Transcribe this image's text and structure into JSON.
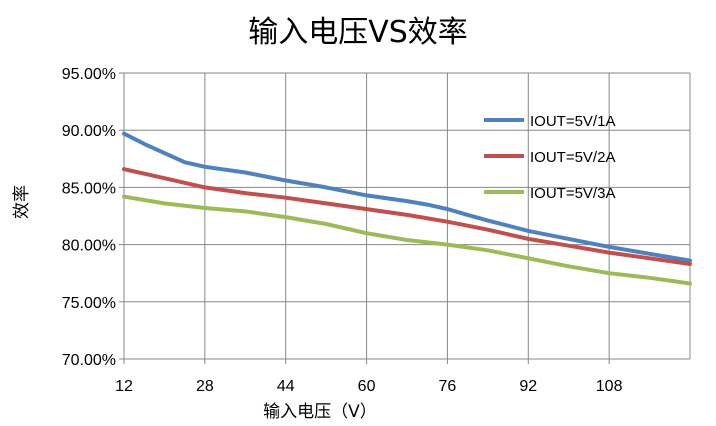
{
  "chart_data": {
    "type": "line",
    "title": "输入电压VS效率",
    "xlabel": "输入电压（V）",
    "ylabel": "效率",
    "xlim": [
      12,
      124
    ],
    "ylim": [
      70,
      95
    ],
    "x_ticks": [
      12,
      28,
      44,
      60,
      76,
      92,
      108
    ],
    "x_tick_labels": [
      "12",
      "28",
      "44",
      "60",
      "76",
      "92",
      "108"
    ],
    "y_ticks": [
      70,
      75,
      80,
      85,
      90,
      95
    ],
    "y_tick_labels": [
      "70.00%",
      "75.00%",
      "80.00%",
      "85.00%",
      "90.00%",
      "95.00%"
    ],
    "grid": true,
    "legend_position": "right",
    "series": [
      {
        "name": "IOUT=5V/1A",
        "color": "#4F81BD",
        "x": [
          12,
          16,
          20,
          24,
          28,
          36,
          44,
          52,
          60,
          68,
          72,
          76,
          80,
          84,
          92,
          100,
          108,
          116,
          124
        ],
        "y": [
          89.7,
          88.8,
          88.0,
          87.2,
          86.8,
          86.3,
          85.6,
          85.0,
          84.3,
          83.8,
          83.5,
          83.1,
          82.6,
          82.1,
          81.2,
          80.5,
          79.8,
          79.2,
          78.6
        ]
      },
      {
        "name": "IOUT=5V/2A",
        "color": "#C0504D",
        "x": [
          12,
          20,
          28,
          36,
          44,
          52,
          60,
          68,
          76,
          84,
          92,
          100,
          108,
          116,
          124
        ],
        "y": [
          86.6,
          85.8,
          85.0,
          84.5,
          84.1,
          83.6,
          83.1,
          82.6,
          82.0,
          81.3,
          80.5,
          79.9,
          79.3,
          78.8,
          78.3
        ]
      },
      {
        "name": "IOUT=5V/3A",
        "color": "#9BBB59",
        "x": [
          12,
          20,
          28,
          36,
          44,
          52,
          60,
          68,
          76,
          84,
          92,
          100,
          108,
          116,
          124
        ],
        "y": [
          84.2,
          83.6,
          83.2,
          82.9,
          82.4,
          81.8,
          81.0,
          80.4,
          80.0,
          79.5,
          78.8,
          78.1,
          77.5,
          77.1,
          76.6
        ]
      }
    ]
  }
}
